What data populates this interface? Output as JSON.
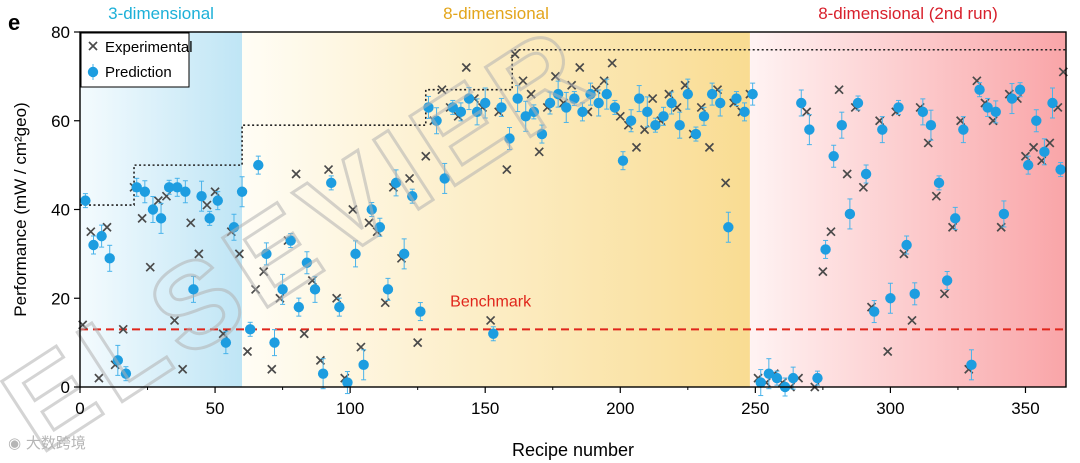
{
  "chart_data": {
    "type": "scatter",
    "panel_label": "e",
    "xlabel": "Recipe number",
    "ylabel": "Performance (mW / cm²geo)",
    "xlim": [
      0,
      365
    ],
    "ylim": [
      0,
      80
    ],
    "xticks": [
      "0",
      "50",
      "100",
      "150",
      "200",
      "250",
      "300",
      "350"
    ],
    "yticks": [
      "0",
      "20",
      "40",
      "60",
      "80"
    ],
    "regions": [
      {
        "label": "3-dimensional",
        "x_start": 0,
        "x_end": 60,
        "color": "#1cb0d8"
      },
      {
        "label": "8-dimensional",
        "x_start": 60,
        "x_end": 248,
        "color": "#e3a51b"
      },
      {
        "label": "8-dimensional (2nd run)",
        "x_start": 248,
        "x_end": 365,
        "color": "#d8202c"
      }
    ],
    "benchmark": {
      "label": "Benchmark",
      "y": 13
    },
    "best_so_far": {
      "x": [
        0,
        20,
        20,
        60,
        60,
        128,
        128,
        160,
        160,
        365
      ],
      "y": [
        41,
        41,
        50,
        50,
        59,
        59,
        67,
        67,
        76,
        76
      ]
    },
    "legend": [
      "Experimental",
      "Prediction"
    ],
    "legend_position": "top-left",
    "series": [
      {
        "name": "Experimental",
        "x": [
          1,
          4,
          7,
          10,
          13,
          16,
          20,
          23,
          26,
          29,
          32,
          35,
          38,
          41,
          44,
          47,
          50,
          53,
          56,
          59,
          62,
          65,
          68,
          71,
          74,
          77,
          80,
          83,
          86,
          89,
          92,
          95,
          98,
          101,
          104,
          107,
          110,
          113,
          116,
          119,
          122,
          125,
          128,
          131,
          134,
          137,
          140,
          143,
          146,
          149,
          152,
          155,
          158,
          161,
          164,
          167,
          170,
          173,
          176,
          179,
          182,
          185,
          188,
          191,
          194,
          197,
          200,
          203,
          206,
          209,
          212,
          215,
          218,
          221,
          224,
          227,
          230,
          233,
          236,
          239,
          242,
          245,
          248,
          251,
          254,
          257,
          260,
          263,
          266,
          269,
          272,
          275,
          278,
          281,
          284,
          287,
          290,
          293,
          296,
          299,
          302,
          305,
          308,
          311,
          314,
          317,
          320,
          323,
          326,
          329,
          332,
          335,
          338,
          341,
          344,
          347,
          350,
          353,
          356,
          359,
          362,
          364
        ],
        "y": [
          14,
          35,
          2,
          36,
          5,
          13,
          45,
          38,
          27,
          42,
          43,
          15,
          4,
          37,
          30,
          41,
          44,
          12,
          35,
          30,
          8,
          22,
          26,
          4,
          20,
          33,
          48,
          12,
          24,
          6,
          49,
          20,
          2,
          40,
          9,
          37,
          35,
          19,
          45,
          29,
          47,
          10,
          52,
          60,
          67,
          63,
          61,
          72,
          65,
          63,
          15,
          62,
          49,
          75,
          69,
          66,
          53,
          63,
          70,
          64,
          68,
          72,
          62,
          67,
          69,
          73,
          61,
          59,
          54,
          58,
          65,
          60,
          66,
          63,
          68,
          57,
          63,
          54,
          67,
          46,
          64,
          62,
          66,
          2,
          1,
          3,
          1,
          0,
          2,
          62,
          0,
          26,
          35,
          67,
          48,
          63,
          45,
          18,
          60,
          8,
          62,
          30,
          15,
          63,
          55,
          43,
          21,
          36,
          60,
          4,
          69,
          64,
          60,
          36,
          66,
          65,
          52,
          54,
          51,
          55,
          63,
          71
        ]
      },
      {
        "name": "Prediction",
        "x": [
          2,
          5,
          8,
          11,
          14,
          17,
          21,
          24,
          27,
          30,
          33,
          36,
          39,
          42,
          45,
          48,
          51,
          54,
          57,
          60,
          63,
          66,
          69,
          72,
          75,
          78,
          81,
          84,
          87,
          90,
          93,
          96,
          99,
          102,
          105,
          108,
          111,
          114,
          117,
          120,
          123,
          126,
          129,
          132,
          135,
          138,
          141,
          144,
          147,
          150,
          153,
          156,
          159,
          162,
          165,
          168,
          171,
          174,
          177,
          180,
          183,
          186,
          189,
          192,
          195,
          198,
          201,
          204,
          207,
          210,
          213,
          216,
          219,
          222,
          225,
          228,
          231,
          234,
          237,
          240,
          243,
          246,
          249,
          252,
          255,
          258,
          261,
          264,
          267,
          270,
          273,
          276,
          279,
          282,
          285,
          288,
          291,
          294,
          297,
          300,
          303,
          306,
          309,
          312,
          315,
          318,
          321,
          324,
          327,
          330,
          333,
          336,
          339,
          342,
          345,
          348,
          351,
          354,
          357,
          360,
          363
        ],
        "y": [
          42,
          32,
          34,
          29,
          6,
          3,
          45,
          44,
          40,
          38,
          45,
          45,
          44,
          22,
          43,
          38,
          42,
          10,
          36,
          44,
          13,
          50,
          30,
          10,
          22,
          33,
          18,
          28,
          22,
          3,
          46,
          18,
          1,
          30,
          5,
          40,
          36,
          22,
          46,
          30,
          43,
          17,
          63,
          60,
          47,
          63,
          62,
          65,
          62,
          64,
          12,
          63,
          56,
          65,
          61,
          62,
          57,
          64,
          66,
          63,
          65,
          62,
          66,
          64,
          66,
          63,
          51,
          60,
          65,
          62,
          59,
          61,
          64,
          59,
          66,
          57,
          61,
          66,
          64,
          36,
          65,
          62,
          66,
          1,
          3,
          2,
          0,
          2,
          64,
          58,
          2,
          31,
          52,
          59,
          39,
          64,
          48,
          17,
          58,
          20,
          63,
          32,
          21,
          62,
          59,
          46,
          24,
          38,
          58,
          5,
          67,
          63,
          62,
          39,
          65,
          67,
          50,
          60,
          53,
          64,
          49
        ]
      }
    ]
  }
}
